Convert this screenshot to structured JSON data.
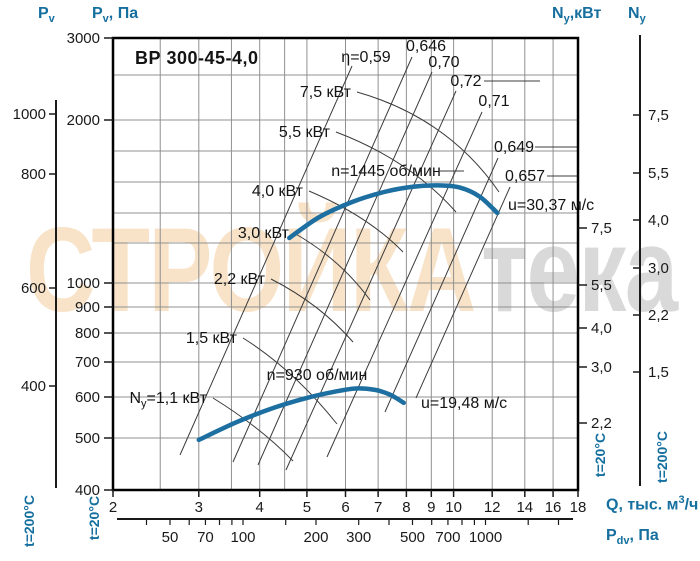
{
  "title": "ВР 300-45-4,0",
  "watermark": {
    "left": "СТРОЙКА",
    "right": "тека"
  },
  "headers": {
    "pv_outer": {
      "main": "P",
      "sub": "v"
    },
    "pv_inner": {
      "main": "P",
      "sub": "v",
      "rest": ", Па"
    },
    "ny_inner": {
      "main": "N",
      "sub": "y",
      "rest": ",кВт"
    },
    "ny_outer": {
      "main": "N",
      "sub": "y"
    },
    "q": {
      "pre": "Q, тыс. м",
      "sup": "3",
      "post": "/ч"
    },
    "pdv": {
      "main": "P",
      "sub": "dv",
      "rest": ", Па"
    }
  },
  "axes": {
    "left_inner": {
      "temp": "t=20°C",
      "ticks": [
        "3000",
        "2000",
        "1000",
        "900",
        "800",
        "700",
        "600",
        "500",
        "400"
      ]
    },
    "left_outer": {
      "temp": "t=200°C",
      "ticks": [
        "1000",
        "800",
        "600",
        "400"
      ]
    },
    "right_inner": {
      "temp": "t=20°C",
      "ticks": [
        "7,5",
        "5,5",
        "4,0",
        "3,0",
        "2,2"
      ]
    },
    "right_outer": {
      "temp": "t=200°C",
      "ticks": [
        "7,5",
        "5,5",
        "4,0",
        "3,0",
        "2,2",
        "1,5"
      ]
    },
    "bottom_q": {
      "ticks": [
        "2",
        "3",
        "4",
        "5",
        "6",
        "7",
        "8",
        "9",
        "10",
        "12",
        "14",
        "16",
        "18"
      ]
    },
    "bottom_pdv": {
      "ticks": [
        "50",
        "70",
        "100",
        "200",
        "300",
        "500",
        "700",
        "1000"
      ]
    }
  },
  "annotations": {
    "efficiency": [
      "η=0,59",
      "0,646",
      "0,70",
      "0,72",
      "0,71",
      "0,649",
      "0,657"
    ],
    "power": [
      "7,5 кВт",
      "5,5 кВт",
      "4,0 кВт",
      "3,0 кВт",
      "2,2 кВт",
      "1,5 кВт"
    ],
    "power_ny": {
      "main": "N",
      "sub": "y",
      "rest": "=1,1 кВт"
    },
    "speed": [
      "n=1445 об/мин",
      "n=930 об/мин"
    ],
    "u": [
      "u=30,37 м/с",
      "u=19,48 м/с"
    ]
  },
  "colors": {
    "accent_blue": "#156f9f",
    "curve_blue": "#1c6fa0",
    "grid_gray": "#909090",
    "line_dark": "#3c3c3c",
    "frame_black": "#000000",
    "watermark_peach": "#f8e3c9",
    "watermark_gray": "#d9d9d9"
  },
  "chart_data": {
    "type": "line",
    "title": "ВР 300-45-4,0",
    "x_axis": {
      "label": "Q, тыс. м³/ч",
      "scale": "log",
      "range": [
        2,
        18
      ],
      "ticks": [
        2,
        3,
        4,
        5,
        6,
        7,
        8,
        9,
        10,
        12,
        14,
        16,
        18
      ],
      "minor_gridlines": [
        2.5,
        3,
        3.5,
        4,
        4.5,
        5,
        6,
        7,
        8,
        9,
        10,
        12,
        14,
        16
      ]
    },
    "y_axis_inner": {
      "label": "Pv, Па (t=20°C)",
      "scale": "log",
      "range": [
        400,
        3000
      ],
      "ticks": [
        400,
        500,
        600,
        700,
        800,
        900,
        1000,
        2000,
        3000
      ],
      "gridlines": [
        500,
        600,
        700,
        800,
        900,
        1000,
        1200,
        1400,
        1600,
        1800,
        2000,
        2500
      ]
    },
    "y_axis_outer": {
      "label": "Pv (t=200°C)",
      "ticks": [
        400,
        600,
        800,
        1000
      ]
    },
    "right_axis_inner": {
      "label": "Ny, кВт (t=20°C)",
      "ticks": [
        2.2,
        3.0,
        4.0,
        5.5,
        7.5
      ]
    },
    "right_axis_outer": {
      "label": "Ny (t=200°C)",
      "ticks": [
        1.5,
        2.2,
        3.0,
        4.0,
        5.5,
        7.5
      ]
    },
    "pdv_axis": {
      "label": "Pdv, Па",
      "scale": "log",
      "labeled_ticks": [
        50,
        70,
        100,
        200,
        300,
        500,
        700,
        1000
      ]
    },
    "series": [
      {
        "name": "n=1445 об/мин",
        "u": "u=30,37 м/с",
        "points_q_p": [
          [
            4.6,
            1230
          ],
          [
            5.3,
            1350
          ],
          [
            6.2,
            1445
          ],
          [
            7.2,
            1510
          ],
          [
            8.2,
            1545
          ],
          [
            9.3,
            1555
          ],
          [
            10.3,
            1540
          ],
          [
            11.3,
            1480
          ],
          [
            12.3,
            1375
          ]
        ]
      },
      {
        "name": "n=930 об/мин",
        "u": "u=19,48 м/с",
        "points_q_p": [
          [
            3.0,
            500
          ],
          [
            3.6,
            542
          ],
          [
            4.3,
            578
          ],
          [
            5.0,
            603
          ],
          [
            5.7,
            620
          ],
          [
            6.3,
            629
          ],
          [
            6.9,
            625
          ],
          [
            7.4,
            612
          ],
          [
            7.9,
            590
          ]
        ]
      }
    ],
    "efficiency_lines": [
      0.59,
      0.646,
      0.7,
      0.72,
      0.71,
      0.649,
      0.657
    ],
    "power_lines_kw": [
      1.1,
      1.5,
      2.2,
      3.0,
      4.0,
      5.5,
      7.5
    ],
    "legend_position": "none",
    "grid": true
  }
}
